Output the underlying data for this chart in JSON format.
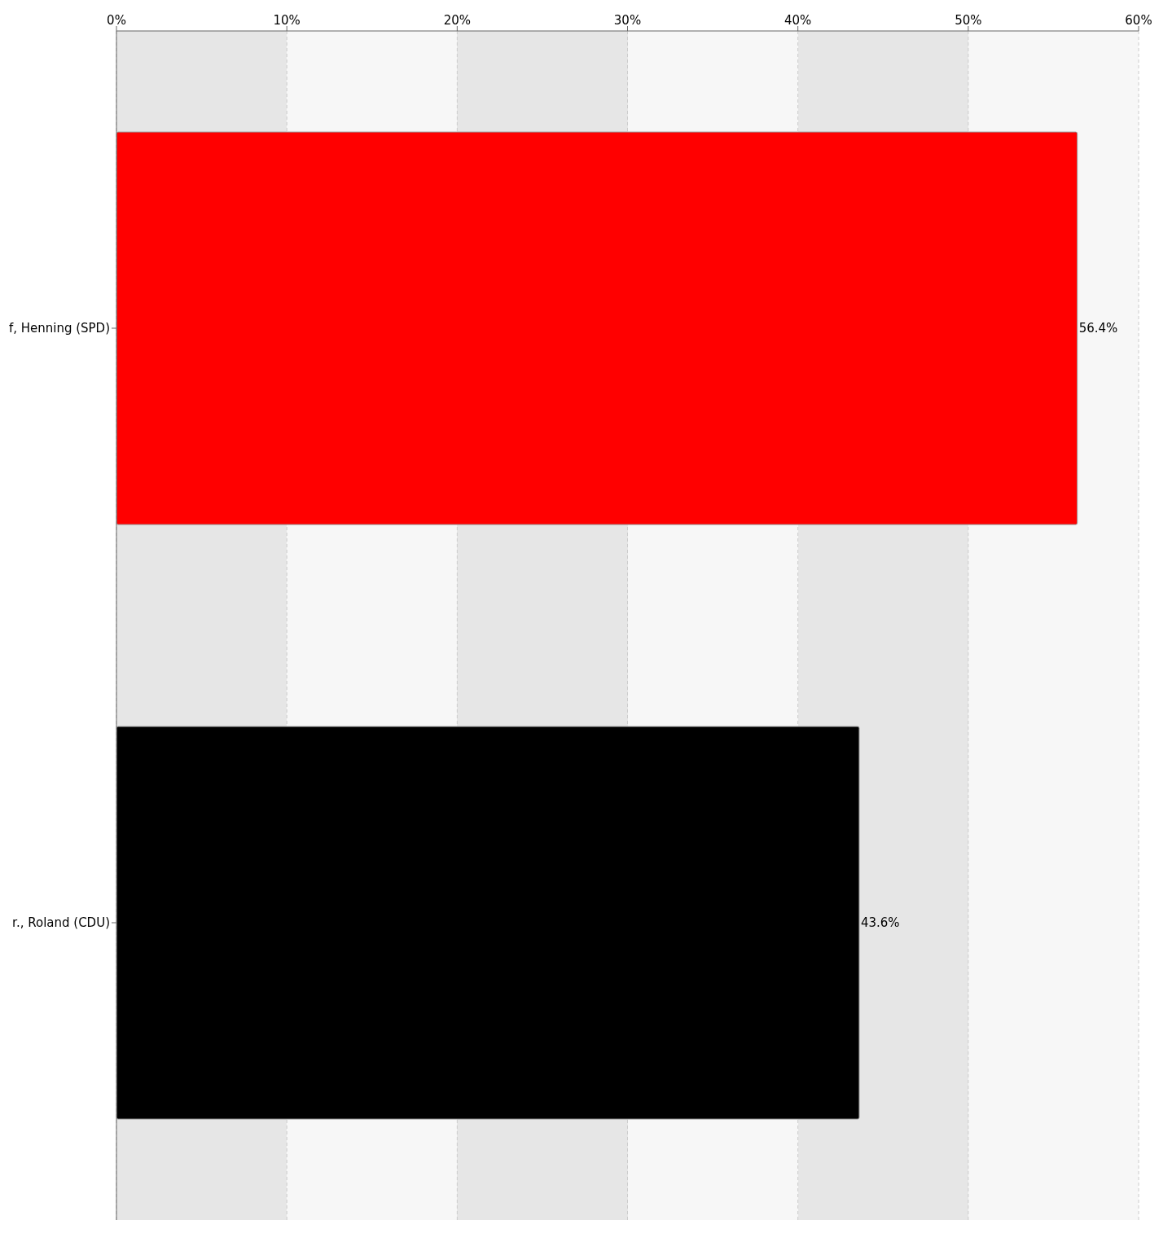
{
  "chart_data": {
    "type": "bar",
    "orientation": "horizontal",
    "categories": [
      "f, Henning (SPD)",
      "r., Roland (CDU)"
    ],
    "values": [
      56.4,
      43.6
    ],
    "colors": [
      "#ff0000",
      "#000000"
    ],
    "value_labels": [
      "56.4%",
      "43.6%"
    ],
    "xlim": [
      0,
      60
    ],
    "xticks": [
      {
        "value": 0,
        "label": "0%"
      },
      {
        "value": 10,
        "label": "10%"
      },
      {
        "value": 20,
        "label": "20%"
      },
      {
        "value": 30,
        "label": "30%"
      },
      {
        "value": 40,
        "label": "40%"
      },
      {
        "value": 50,
        "label": "50%"
      },
      {
        "value": 60,
        "label": "60%"
      }
    ],
    "grid": "x"
  }
}
